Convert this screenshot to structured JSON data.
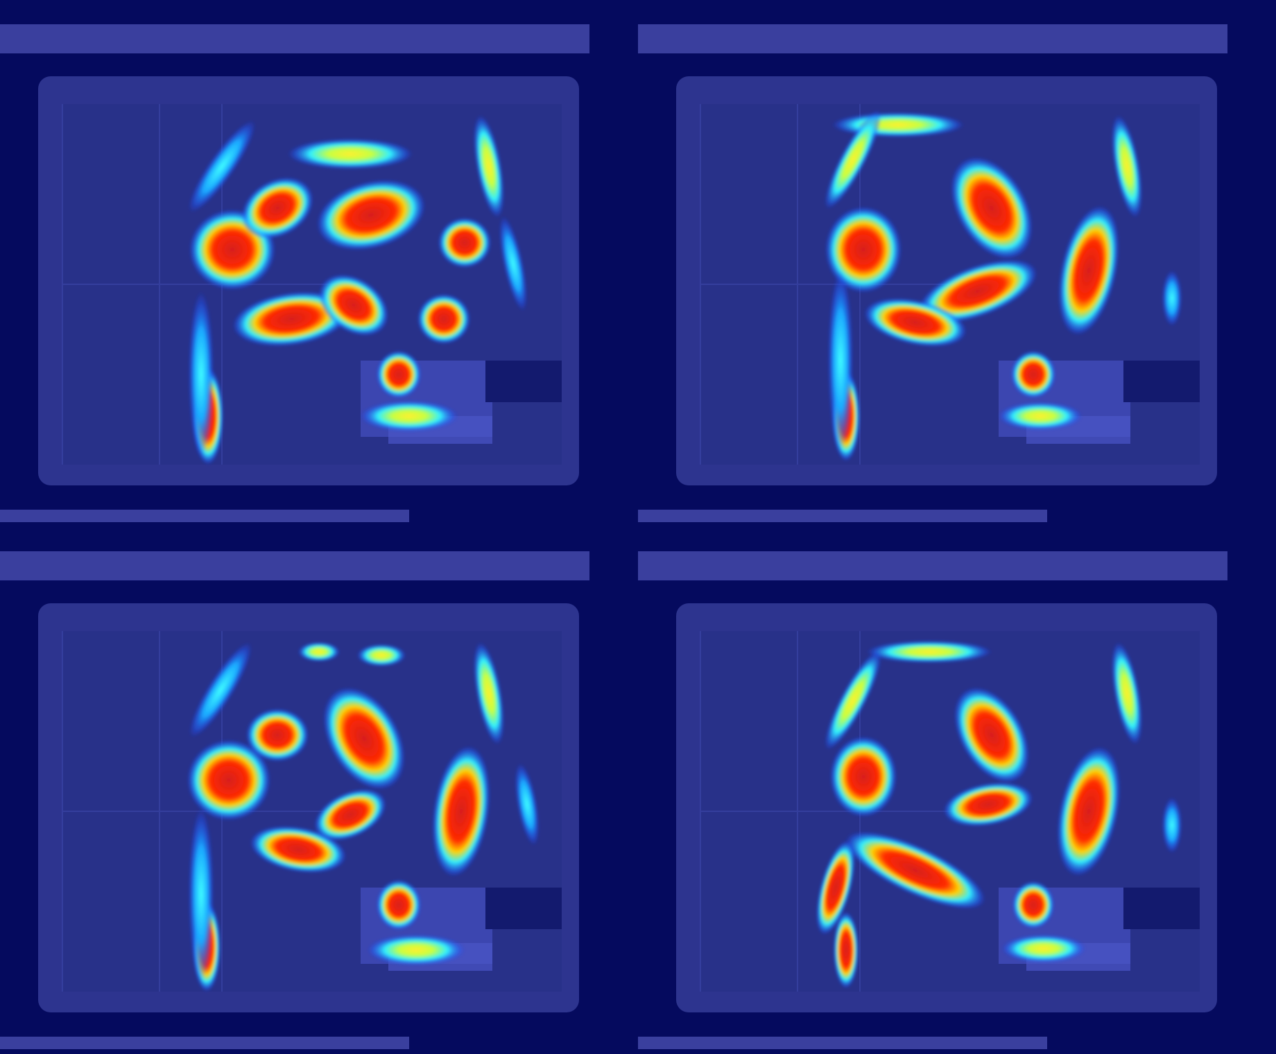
{
  "figure": {
    "layout": "2x2 grid",
    "background_color": "#050a5e",
    "panel_tint": "#3a3f9e",
    "colormap": [
      "#000080",
      "#0000ff",
      "#00ffff",
      "#ffff00",
      "#ff0000",
      "#d61e1e"
    ],
    "panels": [
      {
        "row": 1,
        "col": 1
      },
      {
        "row": 1,
        "col": 2
      },
      {
        "row": 2,
        "col": 1
      },
      {
        "row": 2,
        "col": 2
      }
    ]
  }
}
